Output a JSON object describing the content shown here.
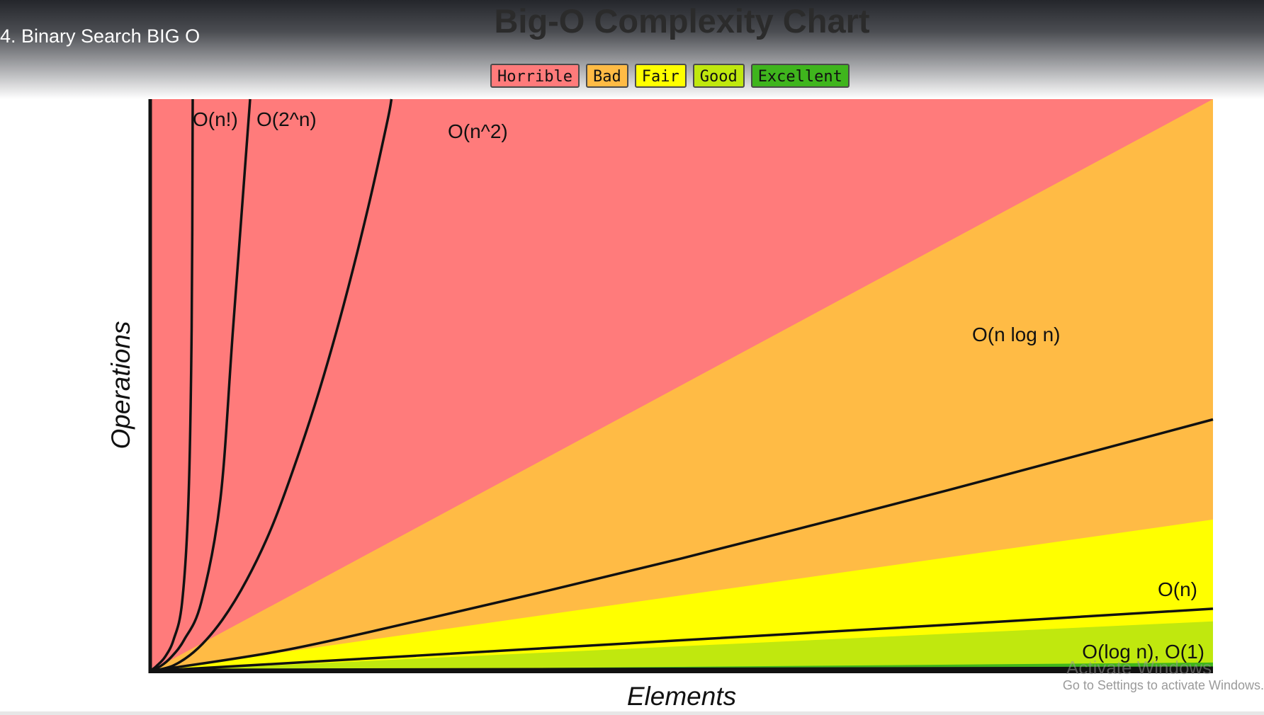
{
  "video": {
    "title": "4. Binary Search BIG O"
  },
  "chart_data": {
    "type": "area",
    "title": "Big-O Complexity Chart",
    "xlabel": "Elements",
    "ylabel": "Operations",
    "legend": [
      {
        "label": "Horrible",
        "color": "#ff7b7b"
      },
      {
        "label": "Bad",
        "color": "#ffbb45"
      },
      {
        "label": "Fair",
        "color": "#ffff00"
      },
      {
        "label": "Good",
        "color": "#c0e80e"
      },
      {
        "label": "Excellent",
        "color": "#3fb51d"
      }
    ],
    "xlim": [
      0,
      100
    ],
    "ylim": [
      0,
      100
    ],
    "regions": [
      {
        "label": "Horrible",
        "color": "#ff7b7b",
        "top_at_xmax": 100
      },
      {
        "label": "Bad",
        "color": "#ffbb45",
        "top_at_xmax": 100
      },
      {
        "label": "Fair",
        "color": "#ffff00",
        "top_at_xmax": 26.5
      },
      {
        "label": "Good",
        "color": "#c0e80e",
        "top_at_xmax": 8.7
      },
      {
        "label": "Excellent",
        "color": "#3fb51d",
        "top_at_xmax": 1.5
      }
    ],
    "series": [
      {
        "name": "O(n!)",
        "points": [
          [
            0,
            0
          ],
          [
            0.6,
            0.9
          ],
          [
            1.4,
            2.5
          ],
          [
            2.2,
            5.5
          ],
          [
            3.0,
            12
          ],
          [
            3.6,
            30
          ],
          [
            3.9,
            60
          ],
          [
            4.0,
            100
          ]
        ]
      },
      {
        "name": "O(2^n)",
        "points": [
          [
            0,
            0
          ],
          [
            1.0,
            0.9
          ],
          [
            2.0,
            2.5
          ],
          [
            3.2,
            5.5
          ],
          [
            4.8,
            12
          ],
          [
            6.6,
            30
          ],
          [
            7.8,
            60
          ],
          [
            9.4,
            100
          ]
        ]
      },
      {
        "name": "O(n^2)",
        "points": [
          [
            0,
            0
          ],
          [
            2.2,
            1
          ],
          [
            4.5,
            4
          ],
          [
            6.8,
            9
          ],
          [
            9.1,
            16
          ],
          [
            11.4,
            25
          ],
          [
            13.6,
            36
          ],
          [
            15.9,
            49
          ],
          [
            18.2,
            64
          ],
          [
            20.5,
            81
          ],
          [
            22.3,
            96
          ],
          [
            22.7,
            100
          ]
        ]
      },
      {
        "name": "O(n log n)",
        "points": [
          [
            0,
            0
          ],
          [
            12.5,
            3.6
          ],
          [
            25,
            8.7
          ],
          [
            37.5,
            14.1
          ],
          [
            50,
            19.7
          ],
          [
            62.5,
            25.6
          ],
          [
            75,
            31.6
          ],
          [
            87.5,
            37.8
          ],
          [
            100,
            44
          ]
        ]
      },
      {
        "name": "O(n)",
        "points": [
          [
            0,
            0
          ],
          [
            25,
            2.7
          ],
          [
            50,
            5.4
          ],
          [
            75,
            8.1
          ],
          [
            100,
            10.9
          ]
        ]
      },
      {
        "name": "O(log n), O(1)",
        "points": [
          [
            0,
            0.2
          ],
          [
            100,
            0.6
          ]
        ]
      }
    ]
  },
  "watermark": {
    "heading": "Activate Windows",
    "line": "Go to Settings to activate Windows."
  }
}
